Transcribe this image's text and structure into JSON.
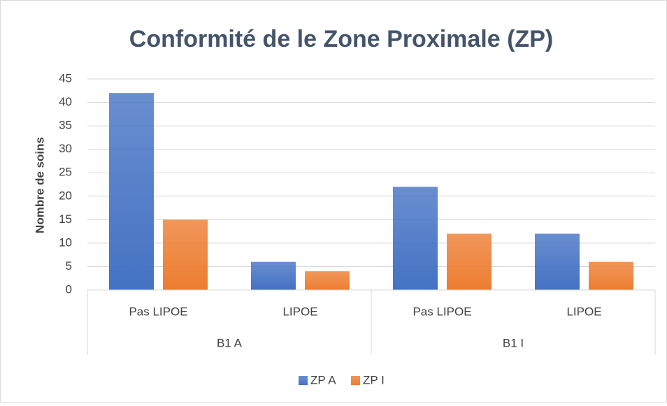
{
  "chart_data": {
    "type": "bar",
    "title": "Conformité de le Zone Proximale (ZP)",
    "ylabel": "Nombre de soins",
    "categories": [
      "Pas LIPOE",
      "LIPOE",
      "Pas LIPOE",
      "LIPOE"
    ],
    "groups": [
      "B1 A",
      "B1 I"
    ],
    "series": [
      {
        "name": "ZP A",
        "color": "#4472c4",
        "values": [
          42,
          6,
          22,
          12
        ]
      },
      {
        "name": "ZP I",
        "color": "#ed7d31",
        "values": [
          15,
          4,
          12,
          6
        ]
      }
    ],
    "ylim": [
      0,
      45
    ],
    "yticks": [
      0,
      5,
      10,
      15,
      20,
      25,
      30,
      35,
      40,
      45
    ],
    "grid": true,
    "legend": "bottom"
  }
}
